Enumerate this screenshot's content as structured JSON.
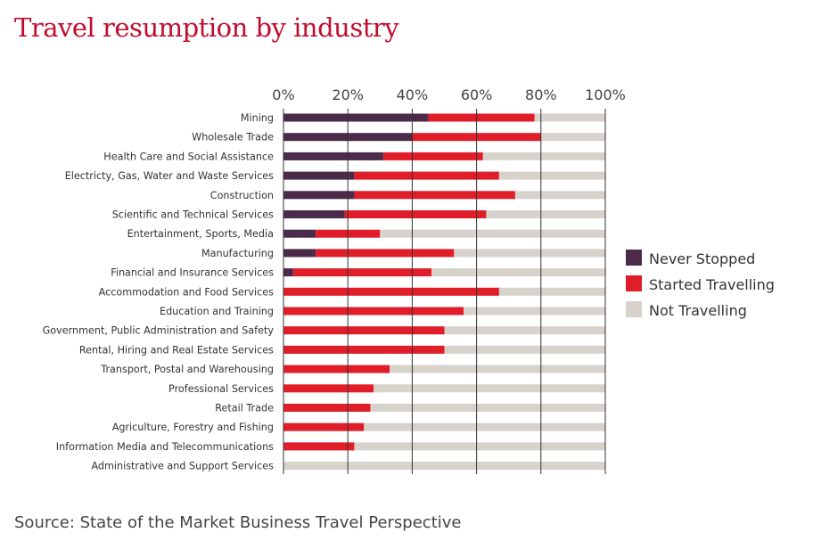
{
  "chart_data": {
    "type": "bar",
    "orientation": "horizontal",
    "stacked": true,
    "title": "Travel resumption by industry",
    "source": "Source: State of the Market Business Travel Perspective",
    "x_ticks": [
      "0%",
      "20%",
      "40%",
      "60%",
      "80%",
      "100%"
    ],
    "xlim": [
      0,
      100
    ],
    "x_axis_position": "top",
    "grid": true,
    "legend_position": "right",
    "categories": [
      "Mining",
      "Wholesale Trade",
      "Health Care and Social Assistance",
      "Electricty, Gas, Water and Waste Services",
      "Construction",
      "Scientific and Technical Services",
      "Entertainment, Sports, Media",
      "Manufacturing",
      "Financial and Insurance Services",
      "Accommodation and Food Services",
      "Education and Training",
      "Government, Public Administration and Safety",
      "Rental, Hiring and Real Estate Services",
      "Transport, Postal and Warehousing",
      "Professional Services",
      "Retail Trade",
      "Agriculture, Forestry and Fishing",
      "Information Media and Telecommunications",
      "Administrative and Support Services"
    ],
    "series": [
      {
        "name": "Never Stopped",
        "color": "#4b2a4a",
        "values": [
          45,
          40,
          31,
          22,
          22,
          19,
          10,
          10,
          3,
          0,
          0,
          0,
          0,
          0,
          0,
          0,
          0,
          0,
          0
        ]
      },
      {
        "name": "Started Travelling",
        "color": "#e01e2a",
        "values": [
          33,
          40,
          31,
          45,
          50,
          44,
          20,
          43,
          43,
          67,
          56,
          50,
          50,
          33,
          28,
          27,
          25,
          22,
          0
        ]
      },
      {
        "name": "Not Travelling",
        "color": "#d8d2cc",
        "values": [
          22,
          20,
          38,
          33,
          28,
          37,
          70,
          47,
          54,
          33,
          44,
          50,
          50,
          67,
          72,
          73,
          75,
          78,
          100
        ]
      }
    ]
  }
}
